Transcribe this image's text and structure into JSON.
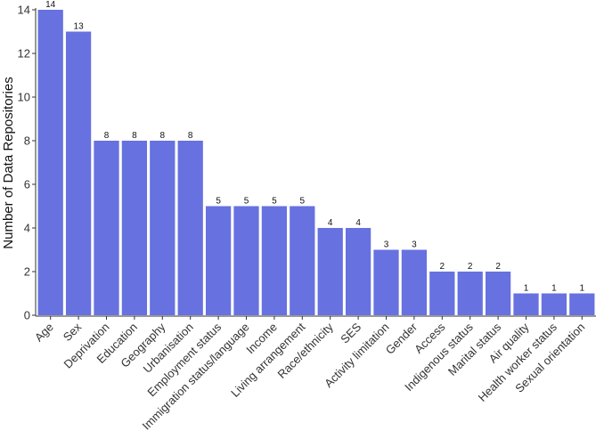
{
  "chart_data": {
    "type": "bar",
    "title": "",
    "xlabel": "",
    "ylabel": "Number of Data Repositories",
    "ylim": [
      0,
      14
    ],
    "yticks": [
      0,
      2,
      4,
      6,
      8,
      10,
      12,
      14
    ],
    "grid": false,
    "legend": "none",
    "bar_color": "#6771e0",
    "categories": [
      "Age",
      "Sex",
      "Deprivation",
      "Education",
      "Geography",
      "Urbanisation",
      "Employment status",
      "Immigration status/language",
      "Income",
      "Living arrangement",
      "Race/ethnicity",
      "SES",
      "Activity limitation",
      "Gender",
      "Access",
      "Indigenous status",
      "Marital status",
      "Air quality",
      "Health worker status",
      "Sexual orientation"
    ],
    "values": [
      14,
      13,
      8,
      8,
      8,
      8,
      5,
      5,
      5,
      5,
      4,
      4,
      3,
      3,
      2,
      2,
      2,
      1,
      1,
      1
    ]
  }
}
